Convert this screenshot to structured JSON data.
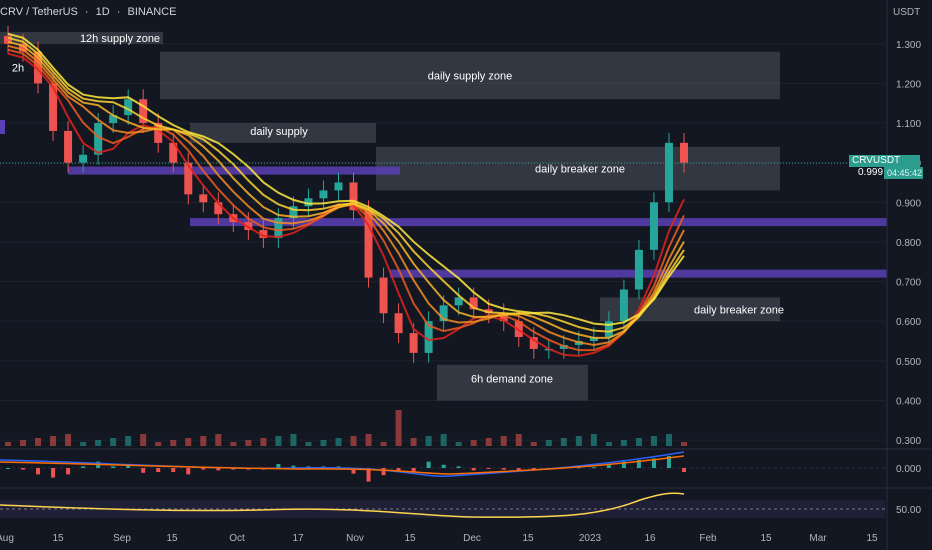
{
  "header": {
    "symbol": "CRV / TetherUS",
    "interval": "1D",
    "exchange": "BINANCE"
  },
  "price_axis": {
    "unit": "USDT",
    "ticks": [
      "1.300",
      "1.200",
      "1.100",
      "1.000",
      "0.900",
      "0.800",
      "0.700",
      "0.600",
      "0.500",
      "0.400",
      "0.300"
    ],
    "macd_tick": "0.000",
    "rsi_tick": "50.00"
  },
  "last_price": {
    "symbol": "CRVUSDT",
    "value": "0.999",
    "countdown": "04:45:42"
  },
  "time_axis": [
    "Aug",
    "15",
    "Sep",
    "15",
    "Oct",
    "17",
    "Nov",
    "15",
    "Dec",
    "15",
    "2023",
    "16",
    "Feb",
    "15",
    "Mar",
    "15"
  ],
  "zone_labels": {
    "supply_12h": "12h supply zone",
    "daily_supply_zone": "daily supply zone",
    "daily_supply": "daily supply",
    "daily_breaker_upper": "daily breaker zone",
    "daily_breaker_lower": "daily breaker zone",
    "demand_6h": "6h demand zone",
    "partial_left": "2h"
  },
  "colors": {
    "background": "#131722",
    "up": "#26a69a",
    "down": "#ef5350",
    "zone": "rgba(120,123,134,0.32)",
    "level": "#5b3fb5",
    "ribbon_top": "#e3221c",
    "ribbon_bottom": "#ffeb3b",
    "macd": "#2962ff",
    "signal": "#ff6d00",
    "rsi": "#ffd54f"
  },
  "chart_data": {
    "type": "candlestick",
    "y_range": [
      0.28,
      1.36
    ],
    "x": [
      "Aug",
      "Aug 15",
      "Sep",
      "Sep 15",
      "Oct",
      "Oct 17",
      "Nov",
      "Nov 15",
      "Dec",
      "Dec 15",
      "2023",
      "Jan 16",
      "Feb",
      "Feb 15",
      "Mar",
      "Mar 15"
    ],
    "series_close_approx": [
      1.3,
      1.28,
      1.2,
      1.08,
      1.0,
      1.02,
      1.1,
      1.12,
      1.16,
      1.1,
      1.05,
      1.0,
      0.92,
      0.9,
      0.87,
      0.85,
      0.83,
      0.81,
      0.86,
      0.89,
      0.91,
      0.93,
      0.95,
      0.88,
      0.71,
      0.62,
      0.57,
      0.52,
      0.6,
      0.64,
      0.66,
      0.63,
      0.62,
      0.6,
      0.56,
      0.53,
      0.53,
      0.54,
      0.55,
      0.56,
      0.6,
      0.68,
      0.78,
      0.9,
      1.05,
      1.0
    ],
    "horizontal_levels": [
      0.98,
      0.85,
      0.72
    ],
    "zones": [
      {
        "label": "12h supply zone",
        "y": [
          1.33,
          1.3
        ]
      },
      {
        "label": "daily supply zone",
        "y": [
          1.28,
          1.16
        ]
      },
      {
        "label": "daily supply",
        "y": [
          1.1,
          1.05
        ]
      },
      {
        "label": "daily breaker zone",
        "y": [
          1.04,
          0.93
        ]
      },
      {
        "label": "daily breaker zone",
        "y": [
          0.66,
          0.6
        ]
      },
      {
        "label": "6h demand zone",
        "y": [
          0.49,
          0.4
        ]
      }
    ],
    "last_value": 0.999
  }
}
